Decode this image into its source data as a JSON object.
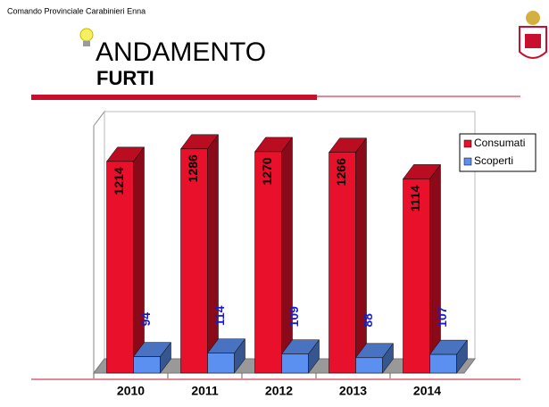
{
  "header": "Comando Provinciale Carabinieri Enna",
  "title": "ANDAMENTO",
  "subtitle": "FURTI",
  "chart_data": {
    "type": "bar3d",
    "categories": [
      "2010",
      "2011",
      "2012",
      "2013",
      "2014"
    ],
    "series": [
      {
        "name": "Consumati",
        "color": "#e8102a",
        "values": [
          1214,
          1286,
          1270,
          1266,
          1114
        ]
      },
      {
        "name": "Scoperti",
        "color": "#5b8ff0",
        "values": [
          94,
          114,
          109,
          88,
          107
        ]
      }
    ],
    "ylim": [
      0,
      1500
    ],
    "legend": "right"
  }
}
